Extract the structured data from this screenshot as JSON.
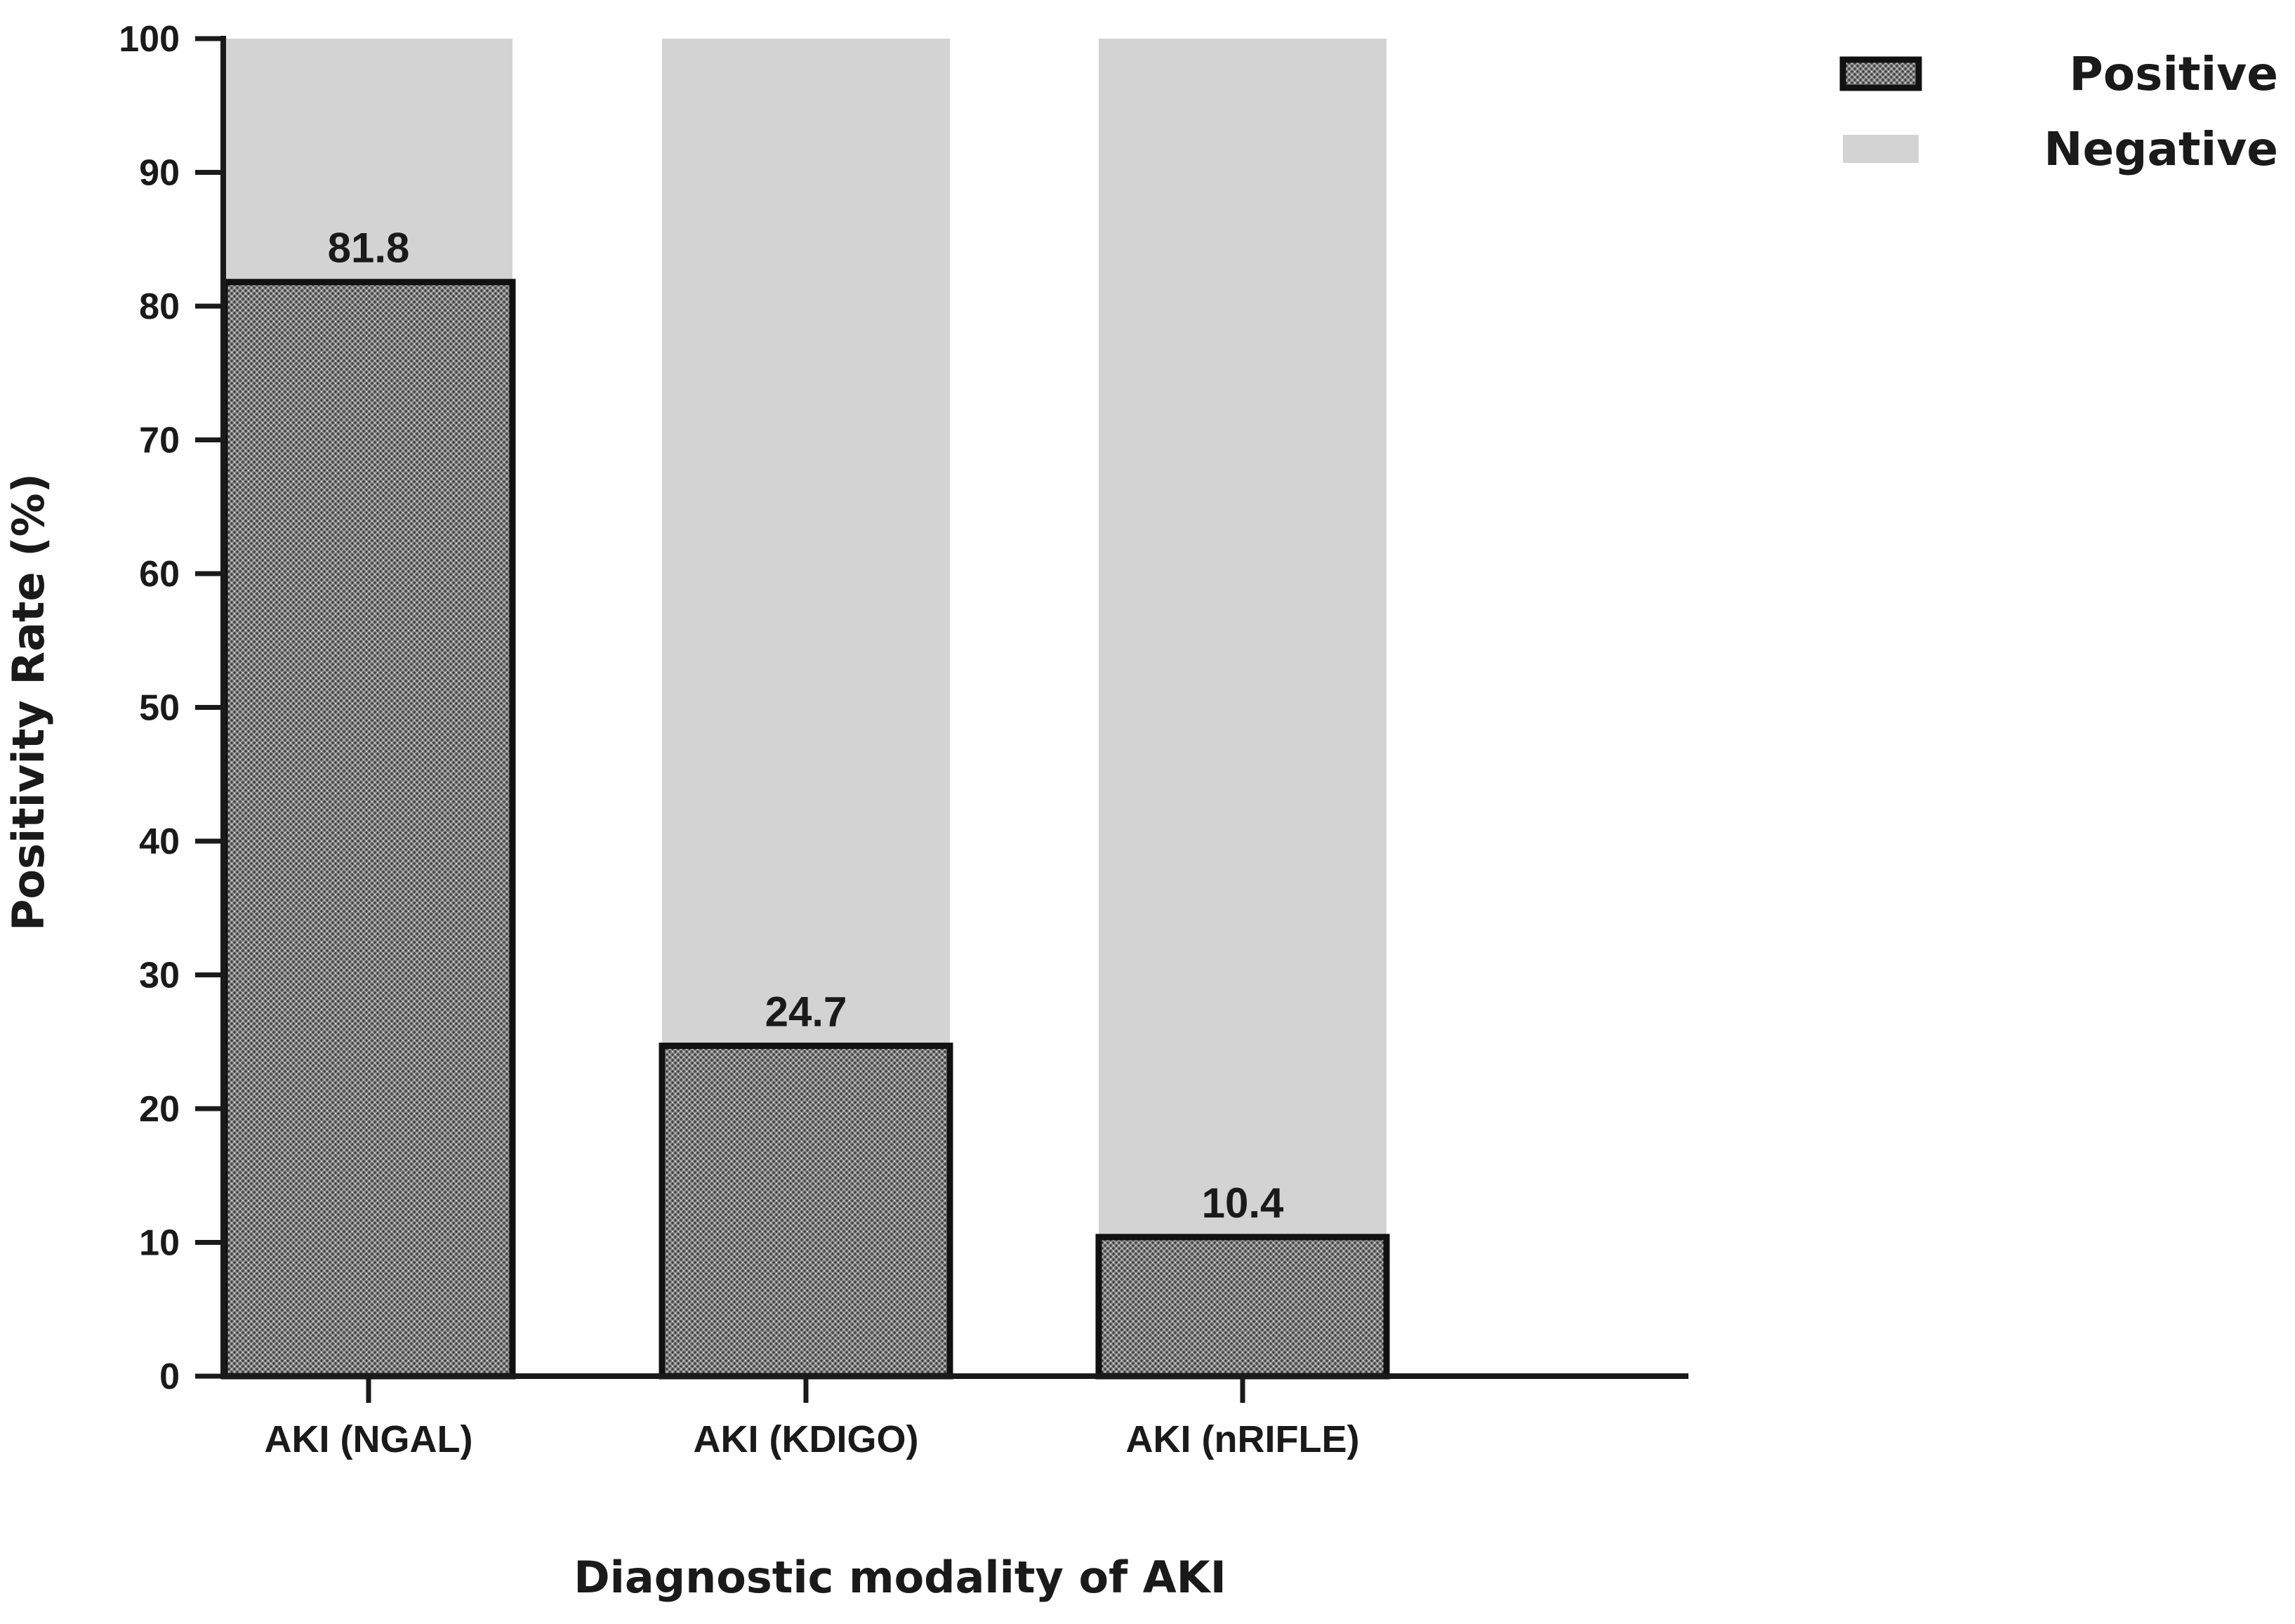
{
  "chart_data": {
    "type": "bar",
    "stacked": true,
    "categories": [
      "AKI (NGAL)",
      "AKI (KDIGO)",
      "AKI (nRIFLE)"
    ],
    "series": [
      {
        "name": "Positive",
        "values": [
          81.8,
          24.7,
          10.4
        ],
        "color": "#6e6e6e",
        "pattern": "dotted"
      },
      {
        "name": "Negative",
        "values": [
          18.2,
          75.3,
          89.6
        ],
        "color": "#d3d3d3"
      }
    ],
    "data_labels": [
      "81.8",
      "24.7",
      "10.4"
    ],
    "xlabel": "Diagnostic modality of AKI",
    "ylabel": "Positivity Rate (%)",
    "ylim": [
      0,
      100
    ],
    "yticks": [
      0,
      10,
      20,
      30,
      40,
      50,
      60,
      70,
      80,
      90,
      100
    ],
    "grid": false,
    "legend": {
      "position": "top-right",
      "entries": [
        "Positive",
        "Negative"
      ]
    }
  }
}
